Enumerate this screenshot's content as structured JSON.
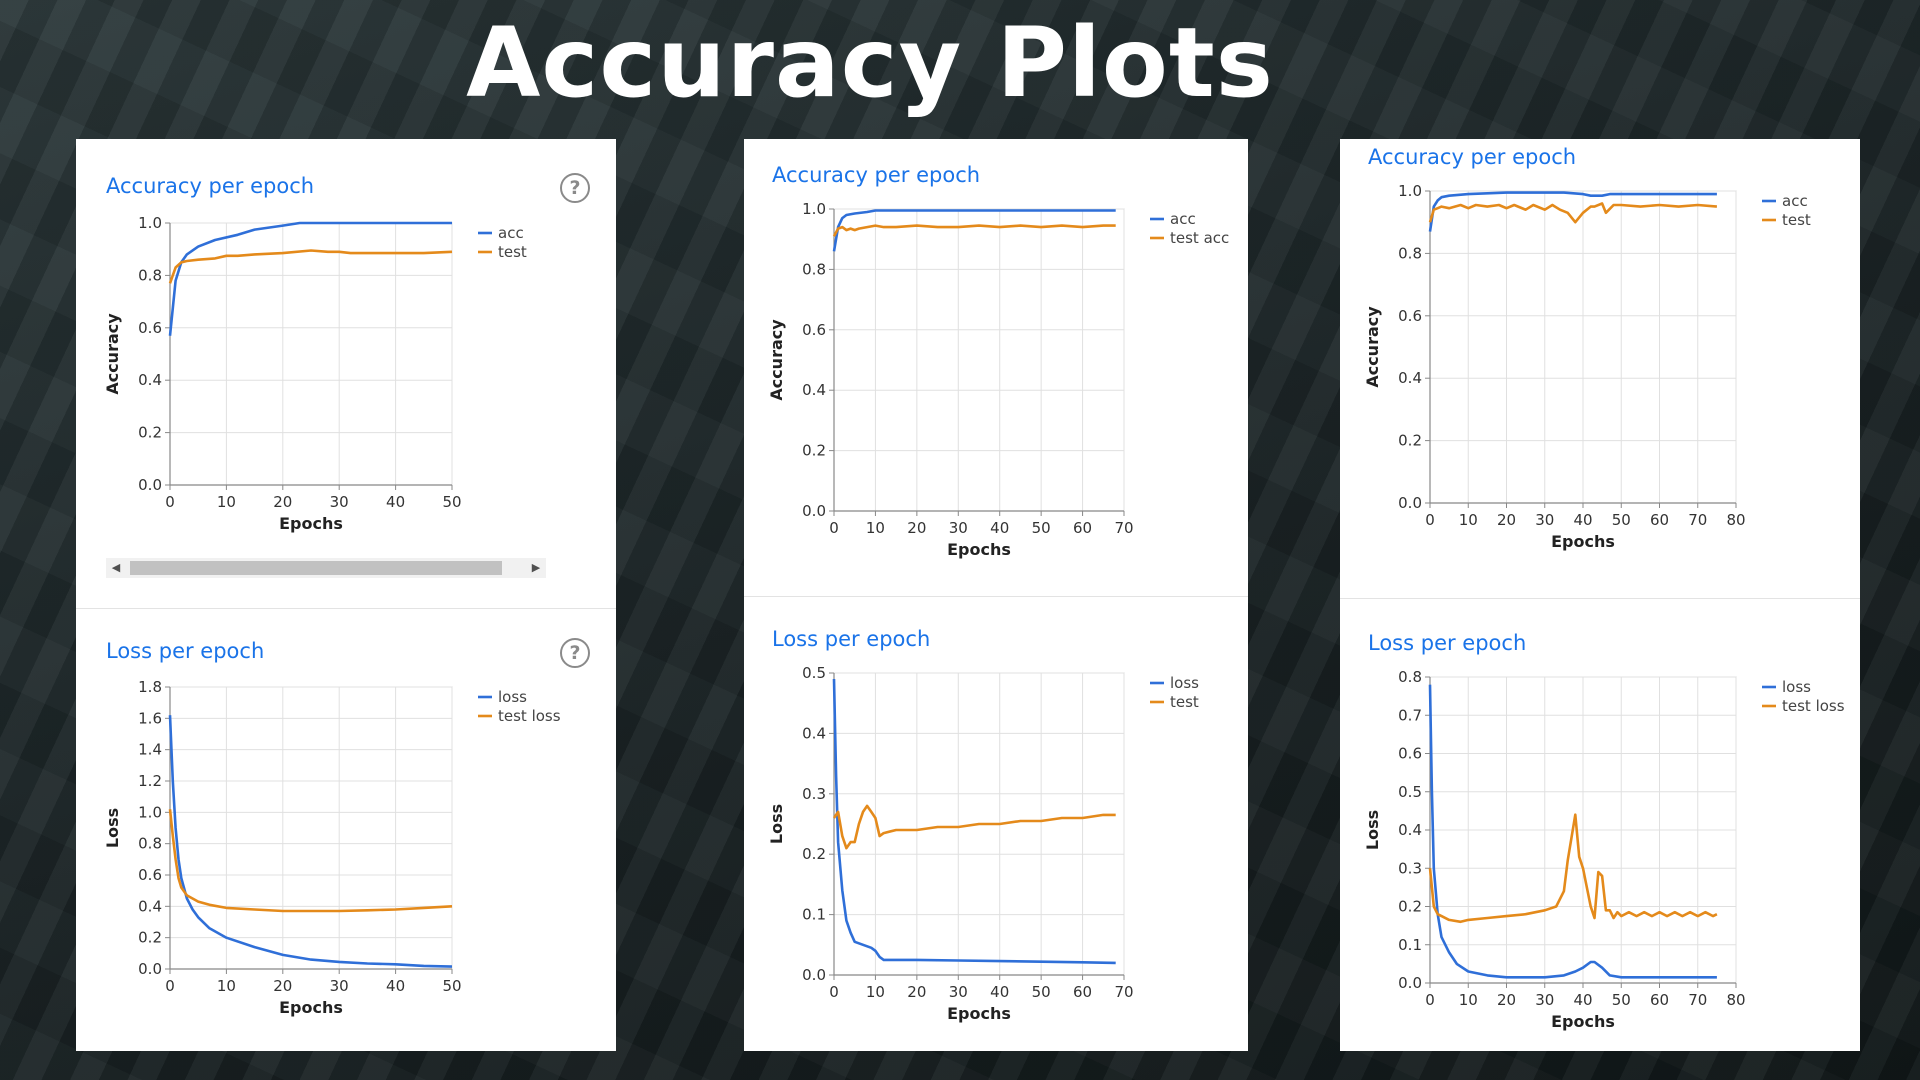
{
  "slide": {
    "title": "Accuracy Plots"
  },
  "colors": {
    "series1": "#2f6fd8",
    "series2": "#e48a1b",
    "grid": "#e0e0e0",
    "title": "#1a73e8"
  },
  "panels": [
    {
      "help_icon": "?",
      "scroll_left": "◀",
      "scroll_right": "▶",
      "charts": [
        {
          "type": "line",
          "title": "Accuracy per epoch",
          "xlabel": "Epochs",
          "ylabel": "Accuracy",
          "xlim": [
            0,
            50
          ],
          "ylim": [
            0,
            1.0
          ],
          "x_ticks": [
            0,
            10,
            20,
            30,
            40,
            50
          ],
          "y_ticks": [
            "0.0",
            "0.2",
            "0.4",
            "0.6",
            "0.8",
            "1.0"
          ],
          "legend_position": "top-right",
          "series": [
            {
              "name": "acc",
              "x": [
                0,
                1,
                2,
                3,
                5,
                8,
                12,
                15,
                20,
                23,
                25,
                30,
                35,
                40,
                45,
                50
              ],
              "values": [
                0.57,
                0.78,
                0.85,
                0.88,
                0.91,
                0.935,
                0.955,
                0.975,
                0.99,
                1.0,
                1.0,
                1.0,
                1.0,
                1.0,
                1.0,
                1.0
              ]
            },
            {
              "name": "test",
              "x": [
                0,
                1,
                2,
                3,
                5,
                8,
                10,
                12,
                15,
                20,
                25,
                28,
                30,
                32,
                35,
                40,
                45,
                50
              ],
              "values": [
                0.77,
                0.83,
                0.85,
                0.855,
                0.86,
                0.865,
                0.875,
                0.875,
                0.88,
                0.885,
                0.895,
                0.89,
                0.89,
                0.885,
                0.885,
                0.885,
                0.885,
                0.89
              ]
            }
          ]
        },
        {
          "type": "line",
          "title": "Loss per epoch",
          "xlabel": "Epochs",
          "ylabel": "Loss",
          "xlim": [
            0,
            50
          ],
          "ylim": [
            0,
            1.8
          ],
          "x_ticks": [
            0,
            10,
            20,
            30,
            40,
            50
          ],
          "y_ticks": [
            "0.0",
            "0.2",
            "0.4",
            "0.6",
            "0.8",
            "1.0",
            "1.2",
            "1.4",
            "1.6",
            "1.8"
          ],
          "legend_position": "top-right",
          "series": [
            {
              "name": "loss",
              "legend_label": "loss",
              "x": [
                0,
                0.5,
                1,
                1.5,
                2,
                3,
                4,
                5,
                7,
                10,
                15,
                20,
                25,
                30,
                35,
                40,
                45,
                50
              ],
              "values": [
                1.62,
                1.2,
                0.9,
                0.7,
                0.58,
                0.45,
                0.38,
                0.33,
                0.26,
                0.2,
                0.14,
                0.09,
                0.06,
                0.045,
                0.035,
                0.03,
                0.02,
                0.015
              ]
            },
            {
              "name": "test loss",
              "legend_label": "test loss",
              "x": [
                0,
                0.5,
                1,
                1.5,
                2,
                3,
                5,
                7,
                10,
                15,
                20,
                25,
                30,
                35,
                40,
                45,
                50
              ],
              "values": [
                1.02,
                0.85,
                0.7,
                0.58,
                0.52,
                0.47,
                0.43,
                0.41,
                0.39,
                0.38,
                0.37,
                0.37,
                0.37,
                0.375,
                0.38,
                0.39,
                0.4
              ]
            }
          ]
        }
      ]
    },
    {
      "charts": [
        {
          "type": "line",
          "title": "Accuracy per epoch",
          "xlabel": "Epochs",
          "ylabel": "Accuracy",
          "xlim": [
            0,
            70
          ],
          "ylim": [
            0,
            1.0
          ],
          "x_ticks": [
            0,
            10,
            20,
            30,
            40,
            50,
            60,
            70
          ],
          "y_ticks": [
            "0.0",
            "0.2",
            "0.4",
            "0.6",
            "0.8",
            "1.0"
          ],
          "legend_position": "top-right",
          "series": [
            {
              "name": "acc",
              "x": [
                0,
                1,
                2,
                3,
                5,
                8,
                10,
                15,
                20,
                30,
                40,
                50,
                60,
                68
              ],
              "values": [
                0.86,
                0.94,
                0.97,
                0.98,
                0.985,
                0.99,
                0.995,
                0.995,
                0.995,
                0.995,
                0.995,
                0.995,
                0.995,
                0.995
              ]
            },
            {
              "name": "test acc",
              "legend_label": "test acc",
              "x": [
                0,
                1,
                2,
                3,
                4,
                5,
                6,
                8,
                10,
                12,
                15,
                20,
                25,
                30,
                35,
                40,
                45,
                50,
                55,
                60,
                65,
                68
              ],
              "values": [
                0.91,
                0.935,
                0.94,
                0.93,
                0.935,
                0.93,
                0.935,
                0.94,
                0.945,
                0.94,
                0.94,
                0.945,
                0.94,
                0.94,
                0.945,
                0.94,
                0.945,
                0.94,
                0.945,
                0.94,
                0.945,
                0.945
              ]
            }
          ]
        },
        {
          "type": "line",
          "title": "Loss per epoch",
          "xlabel": "Epochs",
          "ylabel": "Loss",
          "xlim": [
            0,
            70
          ],
          "ylim": [
            0,
            0.5
          ],
          "x_ticks": [
            0,
            10,
            20,
            30,
            40,
            50,
            60,
            70
          ],
          "y_ticks": [
            "0.0",
            "0.1",
            "0.2",
            "0.3",
            "0.4",
            "0.5"
          ],
          "legend_position": "top-right",
          "series": [
            {
              "name": "loss",
              "legend_label": "loss",
              "x": [
                0,
                0.5,
                1,
                2,
                3,
                4,
                5,
                7,
                9,
                10,
                11,
                12,
                15,
                20,
                30,
                40,
                50,
                60,
                68
              ],
              "values": [
                0.49,
                0.33,
                0.22,
                0.14,
                0.09,
                0.07,
                0.055,
                0.05,
                0.045,
                0.04,
                0.03,
                0.025,
                0.025,
                0.025,
                0.024,
                0.023,
                0.022,
                0.021,
                0.02
              ]
            },
            {
              "name": "test",
              "legend_label": "test",
              "x": [
                0,
                1,
                2,
                3,
                4,
                5,
                6,
                7,
                8,
                9,
                10,
                11,
                12,
                15,
                20,
                25,
                30,
                35,
                40,
                45,
                50,
                55,
                60,
                65,
                68
              ],
              "values": [
                0.26,
                0.27,
                0.23,
                0.21,
                0.22,
                0.22,
                0.25,
                0.27,
                0.28,
                0.27,
                0.26,
                0.23,
                0.235,
                0.24,
                0.24,
                0.245,
                0.245,
                0.25,
                0.25,
                0.255,
                0.255,
                0.26,
                0.26,
                0.265,
                0.265
              ]
            }
          ]
        }
      ]
    },
    {
      "charts": [
        {
          "type": "line",
          "title": "Accuracy per epoch",
          "xlabel": "Epochs",
          "ylabel": "Accuracy",
          "xlim": [
            0,
            80
          ],
          "ylim": [
            0,
            1.0
          ],
          "x_ticks": [
            0,
            10,
            20,
            30,
            40,
            50,
            60,
            70,
            80
          ],
          "y_ticks": [
            "0.0",
            "0.2",
            "0.4",
            "0.6",
            "0.8",
            "1.0"
          ],
          "legend_position": "top-right",
          "series": [
            {
              "name": "acc",
              "x": [
                0,
                1,
                2,
                3,
                5,
                10,
                20,
                30,
                35,
                40,
                42,
                45,
                47,
                50,
                60,
                70,
                75
              ],
              "values": [
                0.87,
                0.95,
                0.97,
                0.98,
                0.985,
                0.99,
                0.995,
                0.995,
                0.995,
                0.99,
                0.985,
                0.985,
                0.99,
                0.99,
                0.99,
                0.99,
                0.99
              ]
            },
            {
              "name": "test",
              "x": [
                0,
                1,
                2,
                3,
                5,
                8,
                10,
                12,
                15,
                18,
                20,
                22,
                25,
                27,
                30,
                32,
                34,
                36,
                38,
                40,
                42,
                43,
                45,
                46,
                48,
                50,
                55,
                60,
                65,
                70,
                75
              ],
              "values": [
                0.9,
                0.94,
                0.945,
                0.95,
                0.945,
                0.955,
                0.945,
                0.955,
                0.95,
                0.955,
                0.945,
                0.955,
                0.94,
                0.955,
                0.94,
                0.955,
                0.94,
                0.93,
                0.9,
                0.93,
                0.95,
                0.95,
                0.96,
                0.93,
                0.955,
                0.955,
                0.95,
                0.955,
                0.95,
                0.955,
                0.95
              ]
            }
          ]
        },
        {
          "type": "line",
          "title": "Loss per epoch",
          "xlabel": "Epochs",
          "ylabel": "Loss",
          "xlim": [
            0,
            80
          ],
          "ylim": [
            0,
            0.8
          ],
          "x_ticks": [
            0,
            10,
            20,
            30,
            40,
            50,
            60,
            70,
            80
          ],
          "y_ticks": [
            "0.0",
            "0.1",
            "0.2",
            "0.3",
            "0.4",
            "0.5",
            "0.6",
            "0.7",
            "0.8"
          ],
          "legend_position": "top-right",
          "series": [
            {
              "name": "loss",
              "legend_label": "loss",
              "x": [
                0,
                0.5,
                1,
                2,
                3,
                5,
                7,
                10,
                15,
                20,
                30,
                35,
                38,
                40,
                42,
                43,
                45,
                47,
                50,
                60,
                70,
                75
              ],
              "values": [
                0.78,
                0.5,
                0.3,
                0.18,
                0.12,
                0.08,
                0.05,
                0.03,
                0.02,
                0.015,
                0.015,
                0.02,
                0.03,
                0.04,
                0.055,
                0.055,
                0.04,
                0.02,
                0.015,
                0.015,
                0.015,
                0.015
              ]
            },
            {
              "name": "test loss",
              "legend_label": "test loss",
              "x": [
                0,
                1,
                2,
                3,
                5,
                8,
                10,
                15,
                20,
                25,
                30,
                33,
                35,
                36,
                38,
                39,
                40,
                42,
                43,
                44,
                45,
                46,
                47,
                48,
                49,
                50,
                52,
                54,
                56,
                58,
                60,
                62,
                64,
                66,
                68,
                70,
                72,
                74,
                75
              ],
              "values": [
                0.3,
                0.2,
                0.18,
                0.175,
                0.165,
                0.16,
                0.165,
                0.17,
                0.175,
                0.18,
                0.19,
                0.2,
                0.24,
                0.32,
                0.44,
                0.33,
                0.3,
                0.2,
                0.17,
                0.29,
                0.28,
                0.19,
                0.19,
                0.17,
                0.185,
                0.175,
                0.185,
                0.175,
                0.185,
                0.175,
                0.185,
                0.175,
                0.185,
                0.175,
                0.185,
                0.175,
                0.185,
                0.175,
                0.18
              ]
            }
          ]
        }
      ]
    }
  ]
}
